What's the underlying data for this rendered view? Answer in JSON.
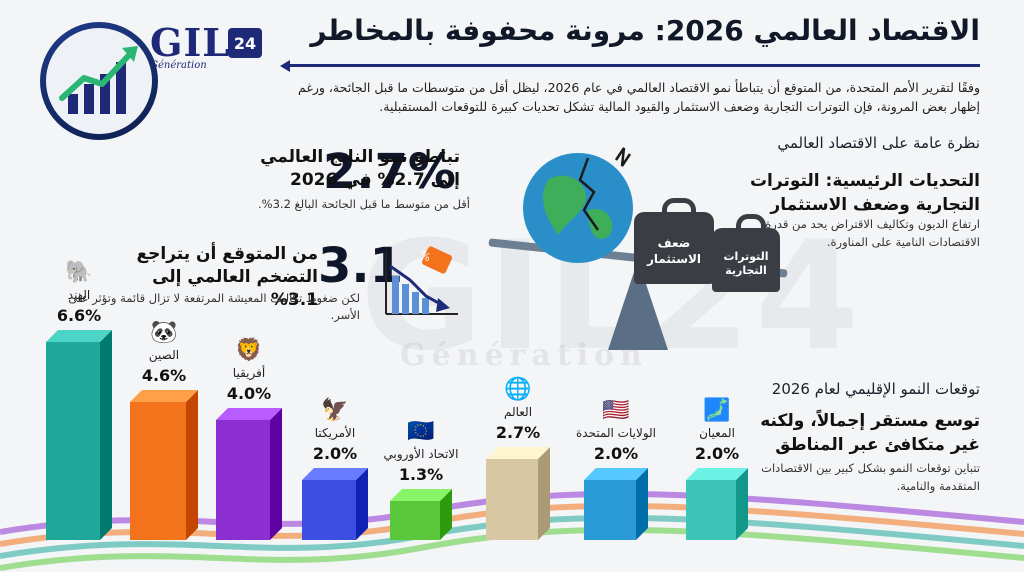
{
  "header": {
    "title": "الاقتصاد العالمي 2026: مرونة محفوفة بالمخاطر",
    "intro": "وفقًا لتقرير الأمم المتحدة، من المتوقع أن يتباطأ نمو الاقتصاد العالمي في عام 2026، ليظل أقل من متوسطات ما قبل الجائحة، ورغم إظهار بعض المرونة، فإن التوترات التجارية وضعف الاستثمار والقيود المالية تشكل تحديات كبيرة للتوقعات المستقبلية."
  },
  "brand": {
    "name": "GIL",
    "badge": "24",
    "tagline": "Génération"
  },
  "watermark": {
    "main": "GIL24",
    "sub": "Génération"
  },
  "stats": {
    "gdp": {
      "number": "2.7%",
      "headline": "تباطؤ نمو الناتج العالمي إلى 2.7% في 2026",
      "note": "أقل من متوسط ما قبل الجائحة البالغ 3.2%."
    },
    "inflation": {
      "number": "3.1",
      "headline": "من المتوقع أن يتراجع التضخم العالمي إلى 3.1%",
      "note": "لكن ضغوط تكاليف المعيشة المرتفعة لا تزال قائمة وتؤثر على الأسر."
    }
  },
  "overview": {
    "heading": "نظرة عامة على الاقتصاد العالمي",
    "challenges_title": "التحديات الرئيسية: التوترات التجارية وضعف الاستثمار",
    "challenges_text": "ارتفاع الديون وتكاليف الاقتراض يحد من قدرة الاقتصادات النامية على المناورة.",
    "weight_left": "ضعف الاستثمار",
    "weight_right": "التوترات التجارية"
  },
  "regional": {
    "heading": "توقعات النمو الإقليمي لعام 2026",
    "subheading": "توسع مستقر إجمالاً، ولكنه غير متكافئ عبر المناطق",
    "text": "تتباين توقعات النمو بشكل كبير بين الاقتصادات المتقدمة والنامية."
  },
  "colors": {
    "navy": "#1e2a78",
    "india": "#1fa89a",
    "china": "#f2731c",
    "africa": "#8c2fd0",
    "americas": "#3c4fe0",
    "eu": "#5ac83a",
    "world": "#d8c7a3",
    "usa": "#2a9bd6",
    "japan": "#3fc5b8"
  },
  "chart_data": {
    "type": "bar",
    "title": "توقعات النمو الإقليمي لعام 2026",
    "categories": [
      "الهند",
      "الصين",
      "أفريقيا",
      "الأمريكتا",
      "الاتحاد الأوروبي",
      "العالم",
      "الولايات المتحدة",
      "المعيان"
    ],
    "values": [
      6.6,
      4.6,
      4.0,
      2.0,
      1.3,
      2.7,
      2.0,
      2.0
    ],
    "value_labels": [
      "6.6%",
      "4.6%",
      "4.0%",
      "2.0%",
      "1.3%",
      "2.7%",
      "2.0%",
      "2.0%"
    ],
    "icons": [
      "elephant-icon",
      "panda-icon",
      "lion-icon",
      "eagle-icon",
      "eu-flag-icon",
      "globe-icon",
      "us-flag-icon",
      "japan-map-icon"
    ],
    "colors": [
      "#1fa89a",
      "#f2731c",
      "#8c2fd0",
      "#3c4fe0",
      "#5ac83a",
      "#d8c7a3",
      "#2a9bd6",
      "#3fc5b8"
    ],
    "ylabel": "",
    "xlabel": "",
    "grid": false,
    "legend": "none"
  }
}
